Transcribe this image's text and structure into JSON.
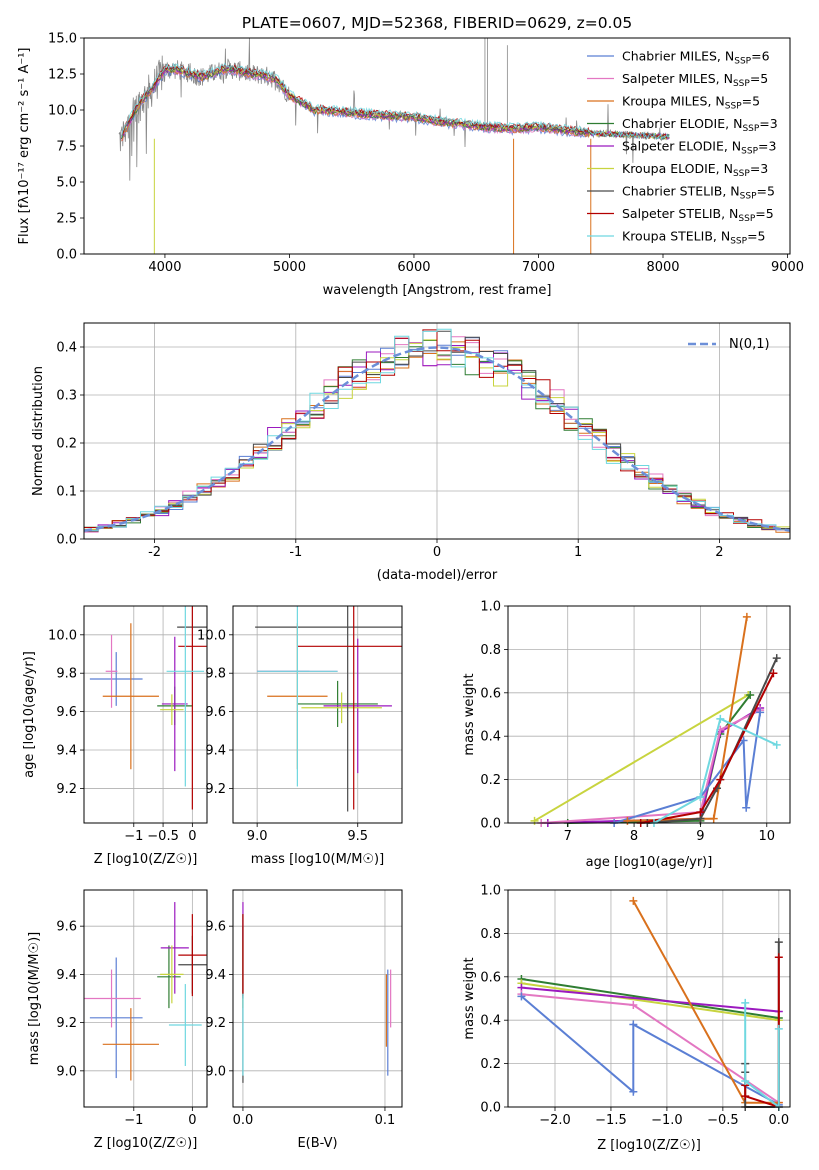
{
  "colors": {
    "chabrier_miles": "#5b7fd4",
    "salpeter_miles": "#e377c2",
    "kroupa_miles": "#d9711d",
    "chabrier_elodie": "#2f7d32",
    "salpeter_elodie": "#9b19bf",
    "kroupa_elodie": "#c8d43f",
    "chabrier_stelib": "#4a4a4a",
    "salpeter_stelib": "#b30000",
    "kroupa_stelib": "#6fd8e0",
    "data": "#888888",
    "normal": "#6c8fd8",
    "grid": "#b0b0b0"
  },
  "chart_data": [
    {
      "id": "spectrum",
      "type": "line",
      "title": "PLATE=0607, MJD=52368, FIBERID=0629, z=0.05",
      "xlabel": "wavelength [Angstrom, rest frame]",
      "ylabel": "Flux [fλ10⁻¹⁷ erg cm⁻² s⁻¹ A⁻¹]",
      "xlim": [
        3350,
        9020
      ],
      "ylim": [
        0,
        15
      ],
      "xticks": [
        4000,
        5000,
        6000,
        7000,
        8000,
        9000
      ],
      "yticks": [
        0.0,
        2.5,
        5.0,
        7.5,
        10.0,
        12.5,
        15.0
      ],
      "grid": false,
      "legend_position": "top-right",
      "legend": [
        {
          "label": "Chabrier MILES, N",
          "sub": "SSP",
          "tail": "=6",
          "color_key": "chabrier_miles"
        },
        {
          "label": "Salpeter MILES, N",
          "sub": "SSP",
          "tail": "=5",
          "color_key": "salpeter_miles"
        },
        {
          "label": "Kroupa MILES, N",
          "sub": "SSP",
          "tail": "=5",
          "color_key": "kroupa_miles"
        },
        {
          "label": "Chabrier ELODIE, N",
          "sub": "SSP",
          "tail": "=3",
          "color_key": "chabrier_elodie"
        },
        {
          "label": "Salpeter ELODIE, N",
          "sub": "SSP",
          "tail": "=3",
          "color_key": "salpeter_elodie"
        },
        {
          "label": "Kroupa ELODIE, N",
          "sub": "SSP",
          "tail": "=3",
          "color_key": "kroupa_elodie"
        },
        {
          "label": "Chabrier STELIB, N",
          "sub": "SSP",
          "tail": "=5",
          "color_key": "chabrier_stelib"
        },
        {
          "label": "Salpeter STELIB, N",
          "sub": "SSP",
          "tail": "=5",
          "color_key": "salpeter_stelib"
        },
        {
          "label": "Kroupa STELIB, N",
          "sub": "SSP",
          "tail": "=5",
          "color_key": "kroupa_stelib"
        }
      ],
      "continuum": {
        "x": [
          3650,
          3700,
          3800,
          3900,
          4000,
          4100,
          4200,
          4300,
          4400,
          4500,
          4600,
          4700,
          4800,
          4900,
          5000,
          5200,
          5400,
          5600,
          5800,
          6000,
          6200,
          6400,
          6600,
          6800,
          7000,
          7200,
          7400
        ],
        "y": [
          8.0,
          9.0,
          10.5,
          11.5,
          12.8,
          12.8,
          12.5,
          12.3,
          12.6,
          12.9,
          12.7,
          12.5,
          12.4,
          12.1,
          11.0,
          10.0,
          9.9,
          9.7,
          9.6,
          9.5,
          9.2,
          9.0,
          8.8,
          8.7,
          8.8,
          8.6,
          8.4
        ]
      }
    },
    {
      "id": "residuals",
      "type": "line",
      "xlabel": "(data-model)/error",
      "ylabel": "Normed distribution",
      "xlim": [
        -2.5,
        2.5
      ],
      "ylim": [
        0,
        0.45
      ],
      "xticks": [
        -2,
        -1,
        0,
        1,
        2
      ],
      "yticks": [
        0.0,
        0.1,
        0.2,
        0.3,
        0.4
      ],
      "grid": true,
      "legend_position": "top-right",
      "legend_label": "N(0,1)",
      "bin_width": 0.1,
      "bin_start": -2.5,
      "bin_count": 50
    },
    {
      "id": "age_vs_Z",
      "type": "scatter",
      "xlabel": "Z [log10(Z/Z☉)]",
      "ylabel": "age  [log10(age/yr)]",
      "xlim": [
        -1.85,
        0.25
      ],
      "ylim": [
        9.02,
        10.15
      ],
      "xticks": [
        -1,
        -0.5,
        0
      ],
      "xticklabels": [
        "−1",
        "−0.5",
        "0"
      ],
      "yticks": [
        9.2,
        9.4,
        9.6,
        9.8,
        10.0
      ],
      "grid": true,
      "points": [
        {
          "key": "chabrier_miles",
          "x": -1.3,
          "y": 9.77,
          "xe": 0.45,
          "ye": 0.14
        },
        {
          "key": "salpeter_miles",
          "x": -1.38,
          "y": 9.81,
          "xe": 0.1,
          "ye": 0.19
        },
        {
          "key": "kroupa_miles",
          "x": -1.05,
          "y": 9.68,
          "xe": 0.48,
          "ye": 0.38
        },
        {
          "key": "chabrier_elodie",
          "x": -0.3,
          "y": 9.63,
          "xe": 0.3,
          "ye": 0.1
        },
        {
          "key": "salpeter_elodie",
          "x": -0.3,
          "y": 9.64,
          "xe": 0.22,
          "ye": 0.35
        },
        {
          "key": "kroupa_elodie",
          "x": -0.35,
          "y": 9.61,
          "xe": 0.2,
          "ye": 0.08
        },
        {
          "key": "chabrier_stelib",
          "x": 0.0,
          "y": 10.04,
          "xe": 0.26,
          "ye": 0.0
        },
        {
          "key": "salpeter_stelib",
          "x": 0.0,
          "y": 9.94,
          "xe": 0.24,
          "ye": 0.85
        },
        {
          "key": "kroupa_stelib",
          "x": -0.12,
          "y": 9.81,
          "xe": 0.32,
          "ye": 0.6
        }
      ]
    },
    {
      "id": "age_vs_mass",
      "type": "scatter",
      "xlabel": "mass [log10(M/M☉)]",
      "ylabel": "",
      "xlim": [
        8.88,
        9.72
      ],
      "ylim": [
        9.02,
        10.15
      ],
      "xticks": [
        9.0,
        9.5
      ],
      "xticklabels": [
        "9.0",
        "9.5"
      ],
      "yticks": [
        9.2,
        9.4,
        9.6,
        9.8,
        10.0
      ],
      "grid": true,
      "points": [
        {
          "key": "chabrier_miles",
          "x": 9.13,
          "y": 9.81,
          "xe": 0.13,
          "ye": 0.0
        },
        {
          "key": "salpeter_miles",
          "x": 9.2,
          "y": 9.81,
          "xe": 0.2,
          "ye": 0.0
        },
        {
          "key": "kroupa_miles",
          "x": 9.2,
          "y": 9.68,
          "xe": 0.15,
          "ye": 0.38
        },
        {
          "key": "chabrier_elodie",
          "x": 9.4,
          "y": 9.64,
          "xe": 0.2,
          "ye": 0.12
        },
        {
          "key": "salpeter_elodie",
          "x": 9.5,
          "y": 9.63,
          "xe": 0.17,
          "ye": 0.35
        },
        {
          "key": "kroupa_elodie",
          "x": 9.42,
          "y": 9.62,
          "xe": 0.2,
          "ye": 0.08
        },
        {
          "key": "chabrier_stelib",
          "x": 9.45,
          "y": 10.04,
          "xe": 0.46,
          "ye": 0.96
        },
        {
          "key": "salpeter_stelib",
          "x": 9.48,
          "y": 9.94,
          "xe": 0.28,
          "ye": 0.85
        },
        {
          "key": "kroupa_stelib",
          "x": 9.2,
          "y": 9.81,
          "xe": 0.2,
          "ye": 0.6
        }
      ]
    },
    {
      "id": "mass_weight_vs_age",
      "type": "line",
      "xlabel": "age  [log10(age/yr)]",
      "ylabel": "mass weight",
      "xlim": [
        6.1,
        10.35
      ],
      "ylim": [
        0,
        1.0
      ],
      "xticks": [
        7,
        8,
        9,
        10
      ],
      "yticks": [
        0.0,
        0.2,
        0.4,
        0.6,
        0.8,
        1.0
      ],
      "grid": true,
      "series": [
        {
          "key": "kroupa_elodie",
          "x": [
            6.5,
            9.72
          ],
          "y": [
            0.01,
            0.59
          ]
        },
        {
          "key": "chabrier_elodie",
          "x": [
            7.0,
            9.0,
            9.3,
            9.75
          ],
          "y": [
            0.0,
            0.01,
            0.41,
            0.59
          ]
        },
        {
          "key": "salpeter_elodie",
          "x": [
            6.7,
            9.0,
            9.3,
            9.9
          ],
          "y": [
            0.0,
            0.02,
            0.42,
            0.53
          ]
        },
        {
          "key": "salpeter_miles",
          "x": [
            6.6,
            9.0,
            9.3,
            9.9
          ],
          "y": [
            0.0,
            0.05,
            0.43,
            0.52
          ]
        },
        {
          "key": "chabrier_miles",
          "x": [
            7.7,
            9.0,
            9.65,
            9.69,
            9.9
          ],
          "y": [
            0.0,
            0.12,
            0.38,
            0.07,
            0.51
          ]
        },
        {
          "key": "kroupa_miles",
          "x": [
            7.9,
            9.0,
            9.2,
            9.7
          ],
          "y": [
            0.01,
            0.02,
            0.02,
            0.95
          ]
        },
        {
          "key": "chabrier_stelib",
          "x": [
            8.2,
            9.0,
            9.25,
            10.15
          ],
          "y": [
            0.0,
            0.02,
            0.16,
            0.76
          ]
        },
        {
          "key": "salpeter_stelib",
          "x": [
            8.1,
            9.0,
            9.3,
            10.1
          ],
          "y": [
            0.0,
            0.05,
            0.2,
            0.69
          ]
        },
        {
          "key": "kroupa_stelib",
          "x": [
            8.3,
            9.0,
            9.3,
            10.15
          ],
          "y": [
            0.0,
            0.12,
            0.48,
            0.36
          ]
        }
      ]
    },
    {
      "id": "mass_vs_Z",
      "type": "scatter",
      "xlabel": "Z [log10(Z/Z☉)]",
      "ylabel": "mass [log10(M/M☉)]",
      "xlim": [
        -1.85,
        0.25
      ],
      "ylim": [
        8.85,
        9.75
      ],
      "xticks": [
        -1,
        0
      ],
      "xticklabels": [
        "−1",
        "0"
      ],
      "yticks": [
        9.0,
        9.2,
        9.4,
        9.6
      ],
      "grid": true,
      "points": [
        {
          "key": "chabrier_miles",
          "x": -1.3,
          "y": 9.22,
          "xe": 0.45,
          "ye": 0.25
        },
        {
          "key": "salpeter_miles",
          "x": -1.38,
          "y": 9.3,
          "xe": 0.5,
          "ye": 0.12
        },
        {
          "key": "kroupa_miles",
          "x": -1.05,
          "y": 9.11,
          "xe": 0.48,
          "ye": 0.15
        },
        {
          "key": "chabrier_elodie",
          "x": -0.4,
          "y": 9.39,
          "xe": 0.2,
          "ye": 0.13
        },
        {
          "key": "salpeter_elodie",
          "x": -0.3,
          "y": 9.51,
          "xe": 0.24,
          "ye": 0.19
        },
        {
          "key": "kroupa_elodie",
          "x": -0.35,
          "y": 9.4,
          "xe": 0.2,
          "ye": 0.12
        },
        {
          "key": "chabrier_stelib",
          "x": 0.0,
          "y": 9.44,
          "xe": 0.24,
          "ye": 0.12
        },
        {
          "key": "salpeter_stelib",
          "x": 0.0,
          "y": 9.48,
          "xe": 0.24,
          "ye": 0.17
        },
        {
          "key": "kroupa_stelib",
          "x": -0.12,
          "y": 9.19,
          "xe": 0.28,
          "ye": 0.17
        }
      ]
    },
    {
      "id": "mass_vs_ebv",
      "type": "scatter",
      "xlabel": "E(B-V)",
      "ylabel": "",
      "xlim": [
        -0.007,
        0.112
      ],
      "ylim": [
        8.85,
        9.75
      ],
      "xticks": [
        0.0,
        0.1
      ],
      "xticklabels": [
        "0.0",
        "0.1"
      ],
      "yticks": [
        9.0,
        9.2,
        9.4,
        9.6
      ],
      "grid": true,
      "points": [
        {
          "key": "chabrier_miles",
          "x": 0.102,
          "y": 9.2,
          "xe": 0.0,
          "ye": 0.22
        },
        {
          "key": "salpeter_miles",
          "x": 0.104,
          "y": 9.3,
          "xe": 0.0,
          "ye": 0.12
        },
        {
          "key": "kroupa_miles",
          "x": 0.101,
          "y": 9.25,
          "xe": 0.0,
          "ye": 0.15
        },
        {
          "key": "chabrier_elodie",
          "x": 0.0,
          "y": 9.45,
          "xe": 0.0,
          "ye": 0.15
        },
        {
          "key": "salpeter_elodie",
          "x": 0.0,
          "y": 9.5,
          "xe": 0.0,
          "ye": 0.2
        },
        {
          "key": "kroupa_elodie",
          "x": 0.0,
          "y": 9.4,
          "xe": 0.0,
          "ye": 0.14
        },
        {
          "key": "chabrier_stelib",
          "x": 0.0,
          "y": 9.3,
          "xe": 0.0,
          "ye": 0.35
        },
        {
          "key": "salpeter_stelib",
          "x": 0.0,
          "y": 9.48,
          "xe": 0.0,
          "ye": 0.17
        },
        {
          "key": "kroupa_stelib",
          "x": 0.0,
          "y": 9.15,
          "xe": 0.0,
          "ye": 0.17
        }
      ]
    },
    {
      "id": "mass_weight_vs_Z",
      "type": "line",
      "xlabel": "Z [log10(Z/Z☉)]",
      "ylabel": "mass weight",
      "xlim": [
        -2.42,
        0.1
      ],
      "ylim": [
        0,
        1.0
      ],
      "xticks": [
        -2.0,
        -1.5,
        -1.0,
        -0.5,
        0.0
      ],
      "xticklabels": [
        "−2.0",
        "−1.5",
        "−1.0",
        "−0.5",
        "0.0"
      ],
      "yticks": [
        0.0,
        0.2,
        0.4,
        0.6,
        0.8,
        1.0
      ],
      "grid": true,
      "series": [
        {
          "key": "chabrier_elodie",
          "x": [
            -2.3,
            0.0
          ],
          "y": [
            0.59,
            0.41
          ]
        },
        {
          "key": "kroupa_elodie",
          "x": [
            -2.3,
            0.0
          ],
          "y": [
            0.57,
            0.4
          ]
        },
        {
          "key": "salpeter_elodie",
          "x": [
            -2.3,
            0.0
          ],
          "y": [
            0.55,
            0.44
          ]
        },
        {
          "key": "salpeter_miles",
          "x": [
            -2.3,
            -1.3,
            0.0
          ],
          "y": [
            0.52,
            0.47,
            0.02
          ]
        },
        {
          "key": "chabrier_miles",
          "x": [
            -2.3,
            -1.3,
            -1.3,
            0.0
          ],
          "y": [
            0.51,
            0.07,
            0.38,
            0.01
          ]
        },
        {
          "key": "kroupa_miles",
          "x": [
            -1.3,
            -0.3,
            0.0
          ],
          "y": [
            0.95,
            0.02,
            0.02
          ]
        },
        {
          "key": "chabrier_stelib",
          "x": [
            -0.3,
            -0.3,
            -0.3,
            0.0,
            0.0
          ],
          "y": [
            0.2,
            0.16,
            0.0,
            0.0,
            0.76
          ]
        },
        {
          "key": "salpeter_stelib",
          "x": [
            -0.3,
            -0.3,
            0.0,
            0.0
          ],
          "y": [
            0.1,
            0.05,
            0.0,
            0.69
          ]
        },
        {
          "key": "kroupa_stelib",
          "x": [
            -0.3,
            -0.3,
            0.0,
            0.0
          ],
          "y": [
            0.48,
            0.12,
            0.0,
            0.36
          ]
        }
      ]
    }
  ]
}
